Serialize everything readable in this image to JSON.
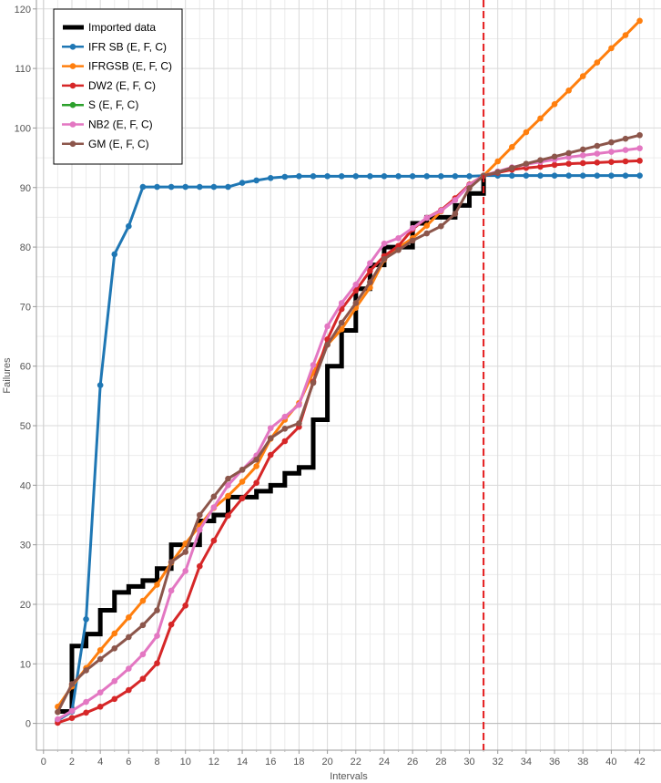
{
  "chart_data": {
    "type": "line",
    "xlabel": "Intervals",
    "ylabel": "Failures",
    "xlim": [
      -0.5,
      43.5
    ],
    "ylim": [
      -4.5,
      121.5
    ],
    "x_ticks": [
      0,
      2,
      4,
      6,
      8,
      10,
      12,
      14,
      16,
      18,
      20,
      22,
      24,
      26,
      28,
      30,
      32,
      34,
      36,
      38,
      40,
      42
    ],
    "y_ticks": [
      0,
      10,
      20,
      30,
      40,
      50,
      60,
      70,
      80,
      90,
      100,
      110,
      120
    ],
    "grid": true,
    "legend_position": "top-left",
    "forecast_line": {
      "x": 31,
      "color": "#e41a1c",
      "style": "dashed"
    },
    "imported": {
      "name": "Imported data",
      "color": "#000000",
      "x": [
        1,
        2,
        3,
        4,
        5,
        6,
        7,
        8,
        9,
        10,
        11,
        12,
        13,
        14,
        15,
        16,
        17,
        18,
        19,
        20,
        21,
        22,
        23,
        24,
        25,
        26,
        27,
        28,
        29,
        30,
        31
      ],
      "y": [
        2,
        13,
        15,
        19,
        22,
        23,
        24,
        26,
        30,
        30,
        34,
        35,
        38,
        38,
        39,
        40,
        42,
        43,
        51,
        60,
        66,
        73,
        77,
        80,
        80,
        84,
        85,
        85,
        87,
        89,
        92
      ]
    },
    "series": [
      {
        "name": "IFR SB (E, F, C)",
        "color": "#1f77b4",
        "x": [
          1,
          2,
          3,
          4,
          5,
          6,
          7,
          8,
          9,
          10,
          11,
          12,
          13,
          14,
          15,
          16,
          17,
          18,
          19,
          20,
          21,
          22,
          23,
          24,
          25,
          26,
          27,
          28,
          29,
          30,
          31,
          32,
          33,
          34,
          35,
          36,
          37,
          38,
          39,
          40,
          41,
          42
        ],
        "y": [
          0.5,
          2,
          17.5,
          56.8,
          78.8,
          83.5,
          90.1,
          90.1,
          90.1,
          90.1,
          90.1,
          90.1,
          90.1,
          90.8,
          91.2,
          91.6,
          91.8,
          91.9,
          91.9,
          91.9,
          91.9,
          91.9,
          91.9,
          91.9,
          91.9,
          91.9,
          91.9,
          91.9,
          91.9,
          91.9,
          92,
          92,
          92,
          92,
          92,
          92,
          92,
          92,
          92,
          92,
          92,
          92
        ]
      },
      {
        "name": "IFRGSB (E, F, C)",
        "color": "#ff7f0e",
        "x": [
          1,
          2,
          3,
          4,
          5,
          6,
          7,
          8,
          9,
          10,
          11,
          12,
          13,
          14,
          15,
          16,
          17,
          18,
          19,
          20,
          21,
          22,
          23,
          24,
          25,
          26,
          27,
          28,
          29,
          30,
          31,
          32,
          33,
          34,
          35,
          36,
          37,
          38,
          39,
          40,
          41,
          42
        ],
        "y": [
          2.8,
          6.2,
          9.3,
          12.3,
          15.1,
          17.8,
          20.6,
          23.3,
          27,
          30.2,
          33.2,
          36.2,
          38.2,
          40.6,
          43.2,
          47.8,
          51,
          53.8,
          58.9,
          63.6,
          66.2,
          69.8,
          73.2,
          77.9,
          79.9,
          81.5,
          83.6,
          86,
          88.2,
          90.4,
          92,
          94.4,
          96.8,
          99.3,
          101.6,
          104,
          106.3,
          108.7,
          111,
          113.4,
          115.6,
          118
        ]
      },
      {
        "name": "DW2 (E, F, C)",
        "color": "#d62728",
        "x": [
          1,
          2,
          3,
          4,
          5,
          6,
          7,
          8,
          9,
          10,
          11,
          12,
          13,
          14,
          15,
          16,
          17,
          18,
          19,
          20,
          21,
          22,
          23,
          24,
          25,
          26,
          27,
          28,
          29,
          30,
          31,
          32,
          33,
          34,
          35,
          36,
          37,
          38,
          39,
          40,
          41,
          42
        ],
        "y": [
          0.1,
          0.9,
          1.8,
          2.8,
          4.1,
          5.6,
          7.5,
          10.1,
          16.6,
          19.8,
          26.4,
          30.7,
          34.9,
          37.8,
          40.4,
          45.1,
          47.4,
          49.8,
          57.4,
          64.5,
          69.6,
          72.7,
          76,
          78.5,
          80.2,
          83,
          84.9,
          86.2,
          88.2,
          90.5,
          92,
          92.5,
          93,
          93.3,
          93.5,
          93.8,
          94,
          94.1,
          94.2,
          94.3,
          94.4,
          94.5
        ]
      },
      {
        "name": "S (E, F, C)",
        "color": "#2ca02c",
        "x": [],
        "y": []
      },
      {
        "name": "NB2 (E, F, C)",
        "color": "#e377c2",
        "x": [
          1,
          2,
          3,
          4,
          5,
          6,
          7,
          8,
          9,
          10,
          11,
          12,
          13,
          14,
          15,
          16,
          17,
          18,
          19,
          20,
          21,
          22,
          23,
          24,
          25,
          26,
          27,
          28,
          29,
          30,
          31,
          32,
          33,
          34,
          35,
          36,
          37,
          38,
          39,
          40,
          41,
          42
        ],
        "y": [
          0.7,
          2.1,
          3.6,
          5.2,
          7.1,
          9.2,
          11.6,
          14.7,
          22.3,
          25.6,
          32.5,
          36.3,
          40,
          42.6,
          45,
          49.6,
          51.5,
          53.5,
          60.2,
          66.7,
          70.6,
          73.7,
          77.3,
          80.6,
          81.5,
          83.2,
          84.9,
          86.1,
          87.9,
          90.4,
          92,
          92.7,
          93.4,
          93.9,
          94.3,
          94.7,
          95.1,
          95.4,
          95.7,
          96,
          96.3,
          96.6
        ]
      },
      {
        "name": "GM (E, F, C)",
        "color": "#8c564b",
        "x": [
          1,
          2,
          3,
          4,
          5,
          6,
          7,
          8,
          9,
          10,
          11,
          12,
          13,
          14,
          15,
          16,
          17,
          18,
          19,
          20,
          21,
          22,
          23,
          24,
          25,
          26,
          27,
          28,
          29,
          30,
          31,
          32,
          33,
          34,
          35,
          36,
          37,
          38,
          39,
          40,
          41,
          42
        ],
        "y": [
          1.9,
          6.6,
          8.9,
          10.8,
          12.6,
          14.5,
          16.5,
          19,
          27.1,
          28.8,
          35,
          38.1,
          41.1,
          42.6,
          44.3,
          47.9,
          49.5,
          50.4,
          57.2,
          63.6,
          67.3,
          70.6,
          74.1,
          78,
          79.5,
          81.1,
          82.3,
          83.5,
          85.6,
          89.9,
          92,
          92.6,
          93.3,
          94,
          94.6,
          95.2,
          95.8,
          96.4,
          97,
          97.6,
          98.2,
          98.8
        ]
      }
    ]
  }
}
